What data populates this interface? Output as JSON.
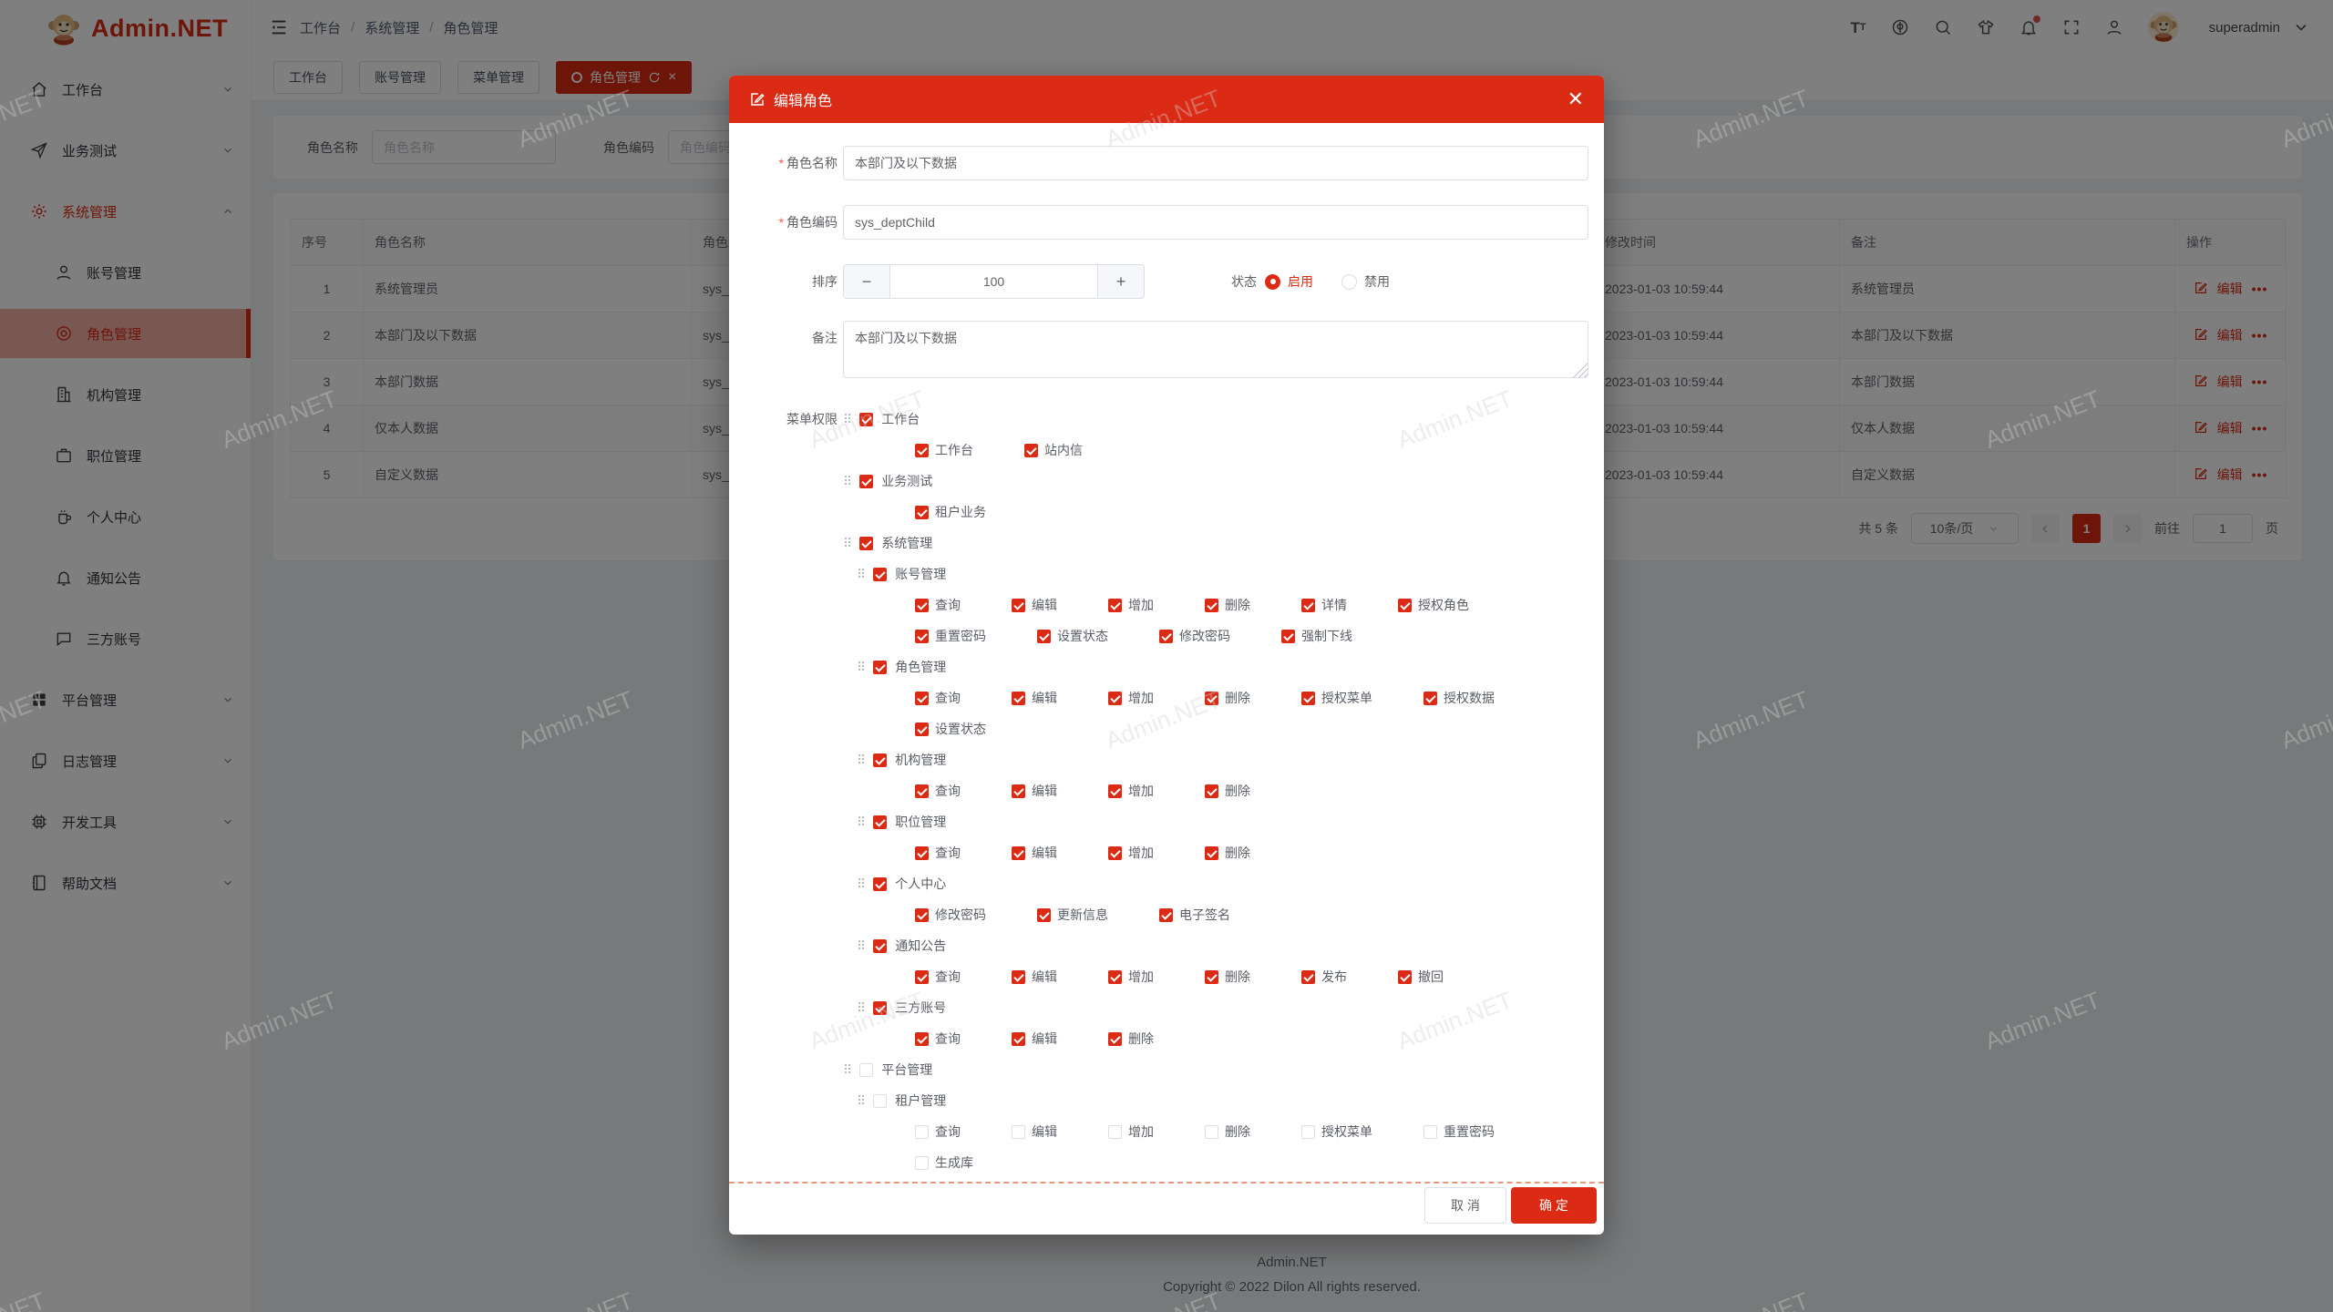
{
  "app": {
    "watermark": "Admin.NET",
    "footer_line1": "Admin.NET",
    "footer_line2": "Copyright © 2022 Dilon All rights reserved."
  },
  "colors": {
    "primary": "#dc2b14"
  },
  "sidebar": {
    "logo_text": "Admin.NET",
    "items": [
      {
        "id": "workbench",
        "label": "工作台",
        "icon": "home-icon",
        "type": "top",
        "chevron": "down"
      },
      {
        "id": "business-test",
        "label": "业务测试",
        "icon": "send-icon",
        "type": "top",
        "chevron": "down"
      },
      {
        "id": "system",
        "label": "系统管理",
        "icon": "gear-icon",
        "type": "top",
        "chevron": "up",
        "parentActive": true
      },
      {
        "id": "account",
        "label": "账号管理",
        "icon": "user-icon",
        "type": "sub"
      },
      {
        "id": "role",
        "label": "角色管理",
        "icon": "role-icon",
        "type": "sub",
        "selected": true
      },
      {
        "id": "org",
        "label": "机构管理",
        "icon": "building-icon",
        "type": "sub"
      },
      {
        "id": "position",
        "label": "职位管理",
        "icon": "briefcase-icon",
        "type": "sub"
      },
      {
        "id": "profile",
        "label": "个人中心",
        "icon": "mug-icon",
        "type": "sub"
      },
      {
        "id": "notice",
        "label": "通知公告",
        "icon": "bell-icon",
        "type": "sub"
      },
      {
        "id": "thirdparty",
        "label": "三方账号",
        "icon": "chat-icon",
        "type": "sub"
      },
      {
        "id": "platform",
        "label": "平台管理",
        "icon": "grid-icon",
        "type": "top",
        "chevron": "down"
      },
      {
        "id": "logs",
        "label": "日志管理",
        "icon": "copy-doc-icon",
        "type": "top",
        "chevron": "down"
      },
      {
        "id": "devtools",
        "label": "开发工具",
        "icon": "cpu-icon",
        "type": "top",
        "chevron": "down"
      },
      {
        "id": "docs",
        "label": "帮助文档",
        "icon": "notebook-icon",
        "type": "top",
        "chevron": "down"
      }
    ]
  },
  "header": {
    "breadcrumb": [
      "工作台",
      "系统管理",
      "角色管理"
    ],
    "breadcrumb_separator": "/",
    "username": "superadmin"
  },
  "tabs": [
    {
      "id": "workbench",
      "label": "工作台"
    },
    {
      "id": "account",
      "label": "账号管理"
    },
    {
      "id": "menu",
      "label": "菜单管理"
    },
    {
      "id": "role",
      "label": "角色管理",
      "active": true
    }
  ],
  "search": {
    "name_label": "角色名称",
    "name_placeholder": "角色名称",
    "code_label": "角色编码",
    "code_placeholder": "角色编码"
  },
  "table": {
    "columns": [
      "序号",
      "角色名称",
      "角色编码",
      "修改时间",
      "备注",
      "操作"
    ],
    "edit_label": "编辑",
    "more_label": "•••",
    "rows": [
      {
        "index": "1",
        "name": "系统管理员",
        "code": "sys_admin",
        "time": "2023-01-03 10:59:44",
        "remark": "系统管理员"
      },
      {
        "index": "2",
        "name": "本部门及以下数据",
        "code": "sys_deptChild",
        "time": "2023-01-03 10:59:44",
        "remark": "本部门及以下数据"
      },
      {
        "index": "3",
        "name": "本部门数据",
        "code": "sys_dept",
        "time": "2023-01-03 10:59:44",
        "remark": "本部门数据"
      },
      {
        "index": "4",
        "name": "仅本人数据",
        "code": "sys_self",
        "time": "2023-01-03 10:59:44",
        "remark": "仅本人数据"
      },
      {
        "index": "5",
        "name": "自定义数据",
        "code": "sys_custom",
        "time": "2023-01-03 10:59:44",
        "remark": "自定义数据"
      }
    ]
  },
  "pagination": {
    "total": "共 5 条",
    "page_size": "10条/页",
    "current": "1",
    "goto_label": "前往",
    "goto_value": "1",
    "page_label": "页"
  },
  "modal": {
    "title": "编辑角色",
    "required_mark": "*",
    "fields": {
      "name_label": "角色名称",
      "name_value": "本部门及以下数据",
      "code_label": "角色编码",
      "code_value": "sys_deptChild",
      "sort_label": "排序",
      "sort_value": "100",
      "minus": "−",
      "plus": "+",
      "status_label": "状态",
      "status_on": "启用",
      "status_off": "禁用",
      "remark_label": "备注",
      "remark_value": "本部门及以下数据",
      "menu_label": "菜单权限"
    },
    "tree": [
      {
        "t": "n",
        "lv": 0,
        "c": 1,
        "label": "工作台"
      },
      {
        "t": "p",
        "c": 1,
        "items": [
          "工作台",
          "站内信"
        ]
      },
      {
        "t": "n",
        "lv": 0,
        "c": 1,
        "label": "业务测试"
      },
      {
        "t": "p",
        "c": 1,
        "items": [
          "租户业务"
        ]
      },
      {
        "t": "n",
        "lv": 0,
        "c": 1,
        "label": "系统管理"
      },
      {
        "t": "n",
        "lv": 1,
        "c": 1,
        "label": "账号管理"
      },
      {
        "t": "p",
        "c": 1,
        "items": [
          "查询",
          "编辑",
          "增加",
          "删除",
          "详情",
          "授权角色"
        ]
      },
      {
        "t": "p",
        "c": 1,
        "items": [
          "重置密码",
          "设置状态",
          "修改密码",
          "强制下线"
        ]
      },
      {
        "t": "n",
        "lv": 1,
        "c": 1,
        "label": "角色管理"
      },
      {
        "t": "p",
        "c": 1,
        "items": [
          "查询",
          "编辑",
          "增加",
          "删除",
          "授权菜单",
          "授权数据"
        ]
      },
      {
        "t": "p",
        "c": 1,
        "items": [
          "设置状态"
        ]
      },
      {
        "t": "n",
        "lv": 1,
        "c": 1,
        "label": "机构管理"
      },
      {
        "t": "p",
        "c": 1,
        "items": [
          "查询",
          "编辑",
          "增加",
          "删除"
        ]
      },
      {
        "t": "n",
        "lv": 1,
        "c": 1,
        "label": "职位管理"
      },
      {
        "t": "p",
        "c": 1,
        "items": [
          "查询",
          "编辑",
          "增加",
          "删除"
        ]
      },
      {
        "t": "n",
        "lv": 1,
        "c": 1,
        "label": "个人中心"
      },
      {
        "t": "p",
        "c": 1,
        "items": [
          "修改密码",
          "更新信息",
          "电子签名"
        ]
      },
      {
        "t": "n",
        "lv": 1,
        "c": 1,
        "label": "通知公告"
      },
      {
        "t": "p",
        "c": 1,
        "items": [
          "查询",
          "编辑",
          "增加",
          "删除",
          "发布",
          "撤回"
        ]
      },
      {
        "t": "n",
        "lv": 1,
        "c": 1,
        "label": "三方账号"
      },
      {
        "t": "p",
        "c": 1,
        "items": [
          "查询",
          "编辑",
          "删除"
        ]
      },
      {
        "t": "n",
        "lv": 0,
        "c": 0,
        "label": "平台管理"
      },
      {
        "t": "n",
        "lv": 1,
        "c": 0,
        "label": "租户管理"
      },
      {
        "t": "p",
        "c": 0,
        "items": [
          "查询",
          "编辑",
          "增加",
          "删除",
          "授权菜单",
          "重置密码"
        ]
      },
      {
        "t": "p",
        "c": 0,
        "items": [
          "生成库"
        ]
      }
    ],
    "cancel": "取 消",
    "confirm": "确 定"
  }
}
